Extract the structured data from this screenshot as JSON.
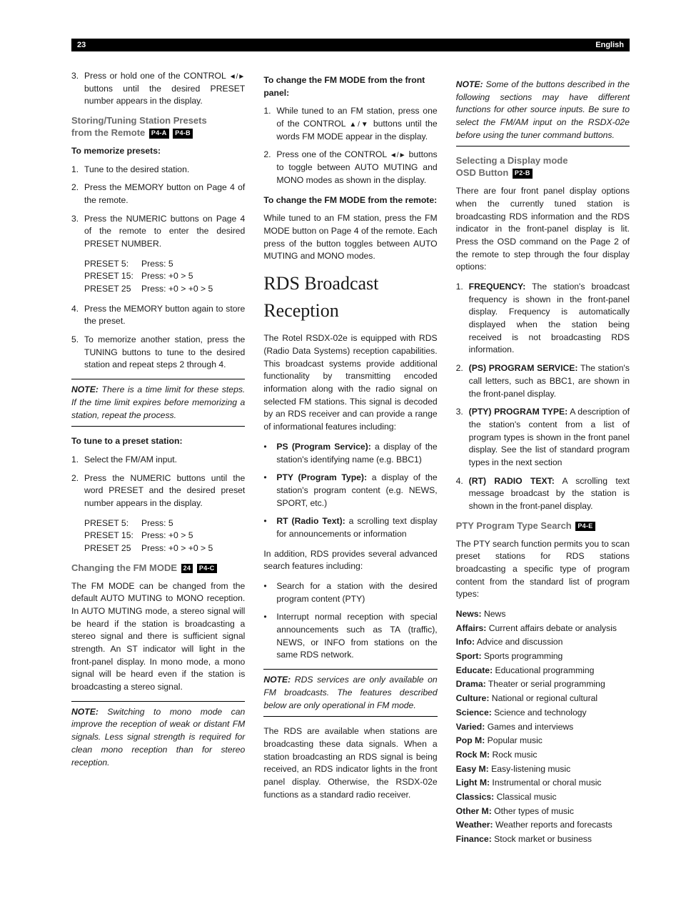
{
  "header": {
    "page_number": "23",
    "language": "English"
  },
  "col1": {
    "step3_pre": "Press or hold one of the CONTROL ",
    "step3_icons": "◄/►",
    "step3_post": " buttons until the desired PRESET number appears in the display.",
    "h_storing_l1": "Storing/Tuning Station Presets",
    "h_storing_l2": "from the Remote ",
    "tag_p4a": "P4-A",
    "tag_p4b": "P4-B",
    "h_memorize": "To memorize presets:",
    "mem1": "Tune to the desired station.",
    "mem2": "Press the MEMORY button on Page 4 of the remote.",
    "mem3": "Press the NUMERIC buttons on Page 4 of the remote to enter the desired PRESET NUMBER.",
    "presets": [
      {
        "a": "PRESET 5:",
        "b": "Press: 5"
      },
      {
        "a": "PRESET 15:",
        "b": "Press: +0 > 5"
      },
      {
        "a": "PRESET 25",
        "b": "Press: +0 > +0 > 5"
      }
    ],
    "mem4": "Press the MEMORY button again to store the preset.",
    "mem5": "To memorize another station, press the TUNING buttons to tune to the desired station and repeat steps 2 through 4.",
    "note1_b": "NOTE:",
    "note1": " There is a time limit for these steps. If the time limit expires before memorizing a station, repeat the process.",
    "h_tune_preset": "To tune to a preset station:",
    "tp1": "Select the FM/AM input.",
    "tp2": "Press the NUMERIC buttons until the word PRESET and the desired preset number appears in the display.",
    "h_fm": "Changing the FM MODE ",
    "tag_24": "24",
    "tag_p4c": "P4-C",
    "fm_para": "The FM MODE can be changed from the default AUTO MUTING to MONO reception. In AUTO MUTING mode, a stereo signal will be heard if the station is broadcasting a stereo signal and there is sufficient signal strength. An ST indicator will light in the front-panel display. In mono mode, a mono signal will be heard even if the station is broadcasting a stereo signal.",
    "note2_b": "NOTE:",
    "note2": " Switching to mono mode can improve the reception of weak or distant FM signals. Less signal strength is required for clean mono reception than for stereo reception."
  },
  "col2": {
    "h_front": "To change the FM MODE from the front panel:",
    "f1_pre": "While tuned to an FM station, press one of the CONTROL ",
    "f1_icons": "▲/▼",
    "f1_post": " buttons until the words FM MODE appear in the display.",
    "f2_pre": "Press one of the CONTROL ",
    "f2_icons": "◄/►",
    "f2_post": " buttons to toggle between AUTO MUTING and MONO modes as shown in the display.",
    "h_remote": "To change the FM MODE from the remote:",
    "remote_p": "While tuned to an FM station, press the FM MODE button on Page 4 of the remote. Each press of the button toggles between AUTO MUTING and MONO modes.",
    "h_rds": "RDS Broadcast Reception",
    "rds_para": "The Rotel RSDX-02e is equipped with RDS (Radio Data Systems) reception capabilities. This broadcast systems provide additional functionality by transmitting encoded information along with the radio signal on selected FM stations. This signal is decoded by an RDS receiver and can provide a range of informational features including:",
    "b1_b": "PS (Program Service):",
    "b1": " a display of the station's identifying name (e.g. BBC1)",
    "b2_b": "PTY (Program Type):",
    "b2": " a display of the station's program content (e.g. NEWS, SPORT, etc.)",
    "b3_b": "RT (Radio Text):",
    "b3": " a scrolling text display for announcements or information",
    "rds_add": "In addition, RDS provides several advanced search features including:",
    "s1": "Search for a station with the desired program content (PTY)",
    "s2": "Interrupt normal reception with special announcements such as TA (traffic), NEWS, or INFO from stations on the same RDS network.",
    "note3_b": "NOTE:",
    "note3": " RDS services are only available on FM broadcasts. The features described below are only operational in FM mode.",
    "rds_avail": "The RDS are available when stations are broadcasting these data signals. When a station broadcasting an RDS signal is being received, an RDS indicator lights in the front panel display. Otherwise, the RSDX-02e functions as a standard radio receiver."
  },
  "col3": {
    "note4_b": "NOTE:",
    "note4": " Some of the buttons described in the following sections may have different functions for other source inputs. Be sure to select the FM/AM input on the RSDX-02e before using the tuner command buttons.",
    "h_display_l1": "Selecting a Display mode",
    "h_display_l2": "OSD Button ",
    "tag_p2b": "P2-B",
    "disp_intro": "There are four front panel display options when the currently tuned station is broadcasting RDS information and the RDS indicator in the front-panel display is lit. Press the OSD command on the Page 2 of the remote to step through the four display options:",
    "d1_b": "FREQUENCY:",
    "d1": " The station's broadcast frequency is shown in the front-panel display. Frequency is automatically displayed when the station being received is not broadcasting RDS information.",
    "d2_b": "(PS) PROGRAM SERVICE:",
    "d2": " The station's call letters, such as BBC1, are shown in the front-panel display.",
    "d3_b": "(PTY) PROGRAM TYPE:",
    "d3": " A description of the station's content from a list of program types is shown in the front panel display. See the list of standard program types in the next section",
    "d4_b": "(RT) RADIO TEXT:",
    "d4": " A scrolling text message broadcast by the station is shown in the front-panel display.",
    "h_pty": "PTY Program Type Search ",
    "tag_p4e": "P4-E",
    "pty_p": "The PTY search function permits you to scan preset stations for RDS stations broadcasting a specific type of program content from the standard list of program types:",
    "pty": [
      {
        "k": "News:",
        "v": " News"
      },
      {
        "k": "Affairs:",
        "v": " Current affairs debate or analysis"
      },
      {
        "k": "Info:",
        "v": " Advice and discussion"
      },
      {
        "k": "Sport:",
        "v": " Sports programming"
      },
      {
        "k": "Educate:",
        "v": " Educational programming"
      },
      {
        "k": "Drama:",
        "v": " Theater or serial programming"
      },
      {
        "k": "Culture:",
        "v": " National or regional cultural"
      },
      {
        "k": "Science:",
        "v": " Science and technology"
      },
      {
        "k": "Varied:",
        "v": " Games and interviews"
      },
      {
        "k": "Pop M:",
        "v": " Popular music"
      },
      {
        "k": "Rock M:",
        "v": " Rock music"
      },
      {
        "k": "Easy M:",
        "v": " Easy-listening music"
      },
      {
        "k": "Light M:",
        "v": " Instrumental or choral music"
      },
      {
        "k": "Classics:",
        "v": " Classical music"
      },
      {
        "k": "Other M:",
        "v": " Other types of music"
      },
      {
        "k": "Weather:",
        "v": " Weather reports and forecasts"
      },
      {
        "k": "Finance:",
        "v": " Stock market or business"
      }
    ]
  }
}
